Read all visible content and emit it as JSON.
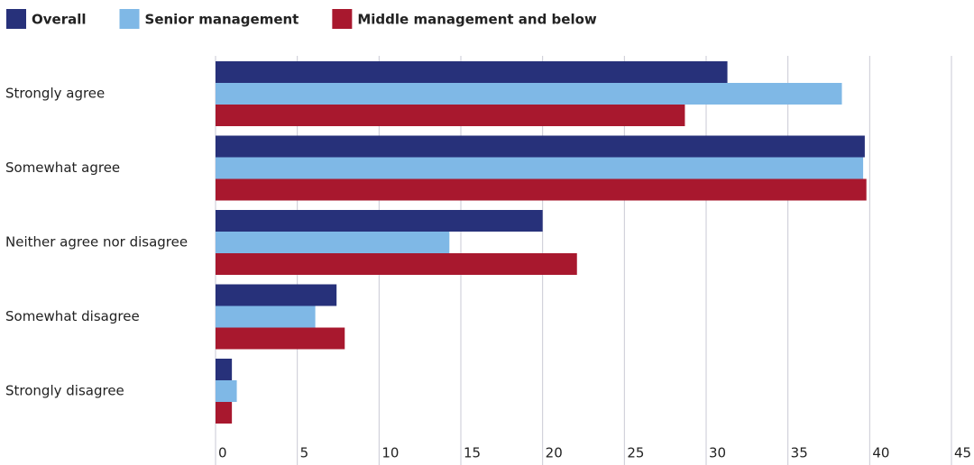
{
  "chart_data": {
    "type": "barh",
    "categories": [
      "Strongly agree",
      "Somewhat agree",
      "Neither agree nor disagree",
      "Somewhat disagree",
      "Strongly disagree"
    ],
    "series": [
      {
        "name": "Overall",
        "color": "#27317a",
        "values": [
          31.3,
          39.7,
          20.0,
          7.4,
          1.0
        ]
      },
      {
        "name": "Senior management",
        "color": "#7fb8e6",
        "values": [
          38.3,
          39.6,
          14.3,
          6.1,
          1.3
        ]
      },
      {
        "name": "Middle management and below",
        "color": "#a8182e",
        "values": [
          28.7,
          39.8,
          22.1,
          7.9,
          1.0
        ]
      }
    ],
    "xlim": [
      0,
      45
    ],
    "xticks": [
      0,
      5,
      10,
      15,
      20,
      25,
      30,
      35,
      40,
      45
    ],
    "grid": true,
    "legend": "top-left"
  }
}
